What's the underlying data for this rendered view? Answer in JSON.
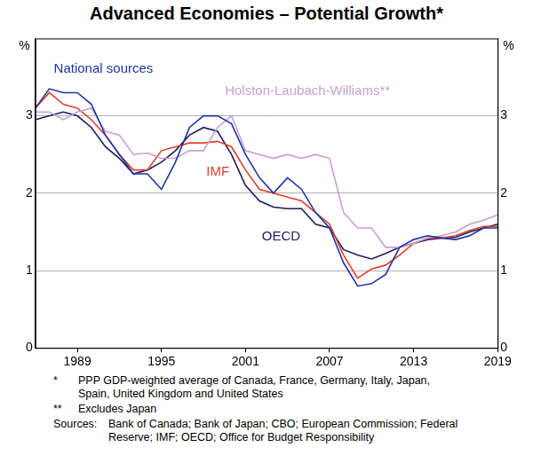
{
  "chart_data": {
    "type": "line",
    "title": "Advanced Economies – Potential Growth*",
    "ylabel": "%",
    "y2label": "%",
    "x": [
      1986,
      1987,
      1988,
      1989,
      1990,
      1991,
      1992,
      1993,
      1994,
      1995,
      1996,
      1997,
      1998,
      1999,
      2000,
      2001,
      2002,
      2003,
      2004,
      2005,
      2006,
      2007,
      2008,
      2009,
      2010,
      2011,
      2012,
      2013,
      2014,
      2015,
      2016,
      2017,
      2018,
      2019
    ],
    "xlim": [
      1986,
      2019
    ],
    "xticks": [
      1989,
      1995,
      2001,
      2007,
      2013,
      2019
    ],
    "ylim": [
      0,
      4
    ],
    "yticks": [
      0,
      1,
      2,
      3
    ],
    "y2lim": [
      0,
      4
    ],
    "y2ticks": [
      0,
      1,
      2,
      3
    ],
    "grid": true,
    "series": [
      {
        "name": "National sources",
        "color": "#1f33a6",
        "values": [
          3.1,
          3.35,
          3.3,
          3.3,
          3.15,
          2.75,
          2.5,
          2.25,
          2.25,
          2.05,
          2.4,
          2.85,
          3.0,
          3.0,
          2.9,
          2.5,
          2.2,
          2.0,
          2.2,
          2.05,
          1.75,
          1.55,
          1.1,
          0.8,
          0.83,
          0.95,
          1.3,
          1.4,
          1.45,
          1.42,
          1.4,
          1.45,
          1.55,
          1.55
        ]
      },
      {
        "name": "Holston-Laubach-Williams**",
        "color": "#c9a0d0",
        "values": [
          3.05,
          3.05,
          2.95,
          3.05,
          3.1,
          2.8,
          2.75,
          2.5,
          2.52,
          2.45,
          2.45,
          2.55,
          2.55,
          2.85,
          3.0,
          2.55,
          2.5,
          2.45,
          2.5,
          2.45,
          2.5,
          2.45,
          1.75,
          1.55,
          1.55,
          1.3,
          1.3,
          1.35,
          1.42,
          1.45,
          1.5,
          1.6,
          1.65,
          1.72
        ]
      },
      {
        "name": "IMF",
        "color": "#e0402e",
        "values": [
          3.1,
          3.3,
          3.15,
          3.1,
          2.95,
          2.75,
          2.5,
          2.3,
          2.3,
          2.55,
          2.6,
          2.65,
          2.65,
          2.67,
          2.6,
          2.3,
          2.05,
          2.0,
          1.95,
          1.9,
          1.75,
          1.6,
          1.2,
          0.9,
          1.02,
          1.07,
          1.2,
          1.35,
          1.42,
          1.42,
          1.45,
          1.52,
          1.57,
          1.57
        ]
      },
      {
        "name": "OECD",
        "color": "#1c1c5e",
        "values": [
          2.95,
          3.0,
          3.05,
          3.0,
          2.85,
          2.6,
          2.45,
          2.25,
          2.3,
          2.4,
          2.55,
          2.75,
          2.85,
          2.8,
          2.5,
          2.1,
          1.9,
          1.82,
          1.8,
          1.8,
          1.6,
          1.55,
          1.27,
          1.2,
          1.15,
          1.22,
          1.3,
          1.35,
          1.4,
          1.42,
          1.43,
          1.5,
          1.55,
          1.6
        ]
      }
    ],
    "notes": [
      {
        "mark": "*",
        "text": "PPP GDP-weighted average of Canada, France, Germany, Italy, Japan, Spain, United Kingdom and United States"
      },
      {
        "mark": "**",
        "text": "Excludes Japan"
      }
    ],
    "sources_label": "Sources:",
    "sources": "Bank of Canada; Bank of Japan; CBO; European Commission; Federal Reserve; IMF; OECD; Office for Budget Responsibility"
  }
}
